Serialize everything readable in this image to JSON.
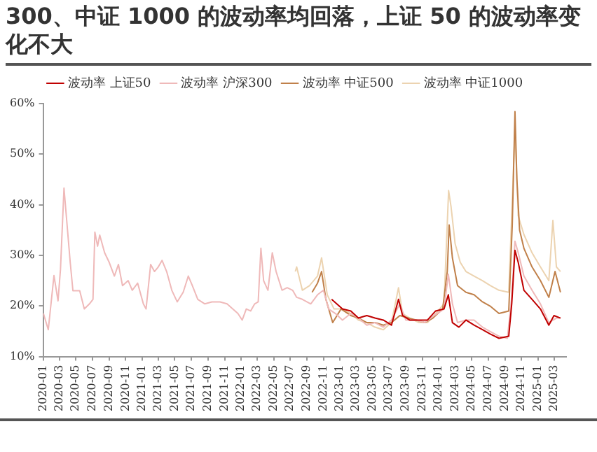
{
  "chart_data": {
    "type": "line",
    "title": "300、中证 1000 的波动率均回落，上证 50 的波动率变化不大",
    "xlim": [
      "2020-01-01",
      "2025-04-15"
    ],
    "xticks": [
      "2020-01",
      "2020-03",
      "2020-05",
      "2020-07",
      "2020-09",
      "2020-11",
      "2021-01",
      "2021-03",
      "2021-05",
      "2021-07",
      "2021-09",
      "2021-11",
      "2022-01",
      "2022-03",
      "2022-05",
      "2022-07",
      "2022-09",
      "2022-11",
      "2023-01",
      "2023-03",
      "2023-05",
      "2023-07",
      "2023-09",
      "2023-11",
      "2024-01",
      "2024-03",
      "2024-05",
      "2024-07",
      "2024-09",
      "2024-11",
      "2025-01",
      "2025-03"
    ],
    "ylim": [
      10,
      60
    ],
    "yticks": [
      {
        "value": 10,
        "label": "10%"
      },
      {
        "value": 20,
        "label": "20%"
      },
      {
        "value": 30,
        "label": "30%"
      },
      {
        "value": 40,
        "label": "40%"
      },
      {
        "value": 50,
        "label": "50%"
      },
      {
        "value": 60,
        "label": "60%"
      }
    ],
    "grid": false,
    "legend": "top",
    "marker": "none",
    "line_style": "solid",
    "series": [
      {
        "name": "波动率 上证50",
        "color": "#c00000",
        "x": [
          "2022-12-01",
          "2022-12-20",
          "2023-01-10",
          "2023-02-10",
          "2023-03-10",
          "2023-04-10",
          "2023-05-10",
          "2023-06-10",
          "2023-07-10",
          "2023-08-05",
          "2023-08-20",
          "2023-09-15",
          "2023-10-20",
          "2023-11-20",
          "2023-12-20",
          "2024-01-20",
          "2024-02-05",
          "2024-02-20",
          "2024-03-15",
          "2024-04-10",
          "2024-05-10",
          "2024-06-10",
          "2024-07-10",
          "2024-08-10",
          "2024-09-15",
          "2024-09-26",
          "2024-10-08",
          "2024-10-20",
          "2024-11-10",
          "2024-12-10",
          "2025-01-10",
          "2025-02-10",
          "2025-03-01",
          "2025-03-25"
        ],
        "values": [
          21.3,
          20.4,
          19.4,
          19,
          17.6,
          18.1,
          17.6,
          17.2,
          16.2,
          21.3,
          18.1,
          17.2,
          17.2,
          17.2,
          19,
          19.4,
          22.2,
          16.7,
          15.8,
          17.2,
          16.2,
          15.3,
          14.4,
          13.6,
          14,
          20.4,
          31,
          28.6,
          23.1,
          21.3,
          19.4,
          16.2,
          18.1,
          17.6
        ]
      },
      {
        "name": "波动率 沪深300",
        "color": "#efb9b9",
        "x": [
          "2020-01-02",
          "2020-01-20",
          "2020-02-10",
          "2020-02-25",
          "2020-03-05",
          "2020-03-18",
          "2020-03-28",
          "2020-04-10",
          "2020-04-20",
          "2020-05-15",
          "2020-06-01",
          "2020-06-20",
          "2020-07-03",
          "2020-07-10",
          "2020-07-20",
          "2020-07-28",
          "2020-08-15",
          "2020-09-01",
          "2020-09-20",
          "2020-10-05",
          "2020-10-20",
          "2020-11-10",
          "2020-11-25",
          "2020-12-15",
          "2021-01-05",
          "2021-01-15",
          "2021-02-01",
          "2021-02-15",
          "2021-03-01",
          "2021-03-15",
          "2021-04-01",
          "2021-04-20",
          "2021-05-10",
          "2021-06-01",
          "2021-06-20",
          "2021-07-05",
          "2021-07-25",
          "2021-08-20",
          "2021-09-15",
          "2021-10-15",
          "2021-11-10",
          "2021-12-01",
          "2021-12-20",
          "2022-01-05",
          "2022-01-20",
          "2022-02-05",
          "2022-02-20",
          "2022-03-05",
          "2022-03-15",
          "2022-03-25",
          "2022-04-10",
          "2022-04-26",
          "2022-05-10",
          "2022-06-01",
          "2022-06-20",
          "2022-07-10",
          "2022-07-25",
          "2022-08-15",
          "2022-09-15",
          "2022-10-10",
          "2022-11-01",
          "2022-11-20",
          "2022-12-15",
          "2023-01-10",
          "2023-02-10",
          "2023-03-10",
          "2023-04-10",
          "2023-05-10",
          "2023-06-10",
          "2023-07-10",
          "2023-08-10",
          "2023-09-01",
          "2023-10-10",
          "2023-11-10",
          "2023-12-15",
          "2024-01-20",
          "2024-02-05",
          "2024-02-20",
          "2024-03-10",
          "2024-04-10",
          "2024-05-10",
          "2024-06-10",
          "2024-07-10",
          "2024-08-10",
          "2024-09-10",
          "2024-09-26",
          "2024-10-08",
          "2024-10-20",
          "2024-11-10",
          "2024-12-10",
          "2025-01-10",
          "2025-02-10",
          "2025-03-10",
          "2025-03-25"
        ],
        "values": [
          18.5,
          15.3,
          26,
          21,
          27.2,
          43.3,
          36.9,
          28.6,
          23,
          23,
          19.4,
          20.4,
          21.3,
          34.6,
          31.8,
          34,
          30.5,
          28.6,
          25.9,
          28.2,
          24,
          25,
          23.1,
          24.5,
          20.4,
          19.4,
          28.2,
          26.8,
          27.7,
          29,
          26.8,
          23.1,
          20.8,
          22.7,
          25.9,
          24,
          21.3,
          20.4,
          20.8,
          20.8,
          20.4,
          19.4,
          18.5,
          17.2,
          19.4,
          19,
          20.4,
          20.8,
          31.4,
          25,
          23.1,
          30.5,
          26.8,
          23.1,
          23.6,
          23.1,
          21.7,
          21.3,
          20.4,
          22.2,
          23.1,
          19.4,
          18.5,
          17.2,
          18.5,
          17.6,
          16.2,
          16.7,
          15.8,
          17.2,
          20.4,
          17.2,
          17.2,
          16.7,
          18.1,
          19.4,
          26.3,
          20.4,
          16.7,
          17.2,
          17.2,
          15.8,
          14.9,
          14,
          13.6,
          21.7,
          32.8,
          30.5,
          25.9,
          23.1,
          20.4,
          16.7,
          17.6,
          17.6
        ]
      },
      {
        "name": "波动率 中证500",
        "color": "#c0804a",
        "x": [
          "2022-09-20",
          "2022-10-10",
          "2022-10-25",
          "2022-11-10",
          "2022-12-05",
          "2023-01-05",
          "2023-02-10",
          "2023-03-10",
          "2023-04-10",
          "2023-05-10",
          "2023-06-10",
          "2023-07-10",
          "2023-08-10",
          "2023-09-10",
          "2023-10-10",
          "2023-11-10",
          "2023-12-10",
          "2024-01-15",
          "2024-02-01",
          "2024-02-08",
          "2024-02-20",
          "2024-03-10",
          "2024-04-10",
          "2024-05-10",
          "2024-06-10",
          "2024-07-10",
          "2024-08-10",
          "2024-09-15",
          "2024-09-28",
          "2024-10-08",
          "2024-10-15",
          "2024-10-25",
          "2024-11-10",
          "2024-12-10",
          "2025-01-10",
          "2025-02-10",
          "2025-03-05",
          "2025-03-25"
        ],
        "values": [
          22.7,
          24.5,
          26.8,
          21.3,
          16.7,
          19.4,
          18.1,
          17.6,
          16.7,
          16.7,
          16.2,
          16.7,
          18.1,
          17.6,
          17.2,
          16.7,
          17.6,
          19.4,
          26.8,
          36,
          29.5,
          24,
          22.7,
          22.2,
          20.8,
          19.9,
          18.5,
          19,
          36,
          58.4,
          45.1,
          35,
          31.4,
          27.7,
          25,
          21.7,
          26.8,
          22.7
        ]
      },
      {
        "name": "波动率 中证1000",
        "color": "#ecd3b0",
        "x": [
          "2022-07-20",
          "2022-07-25",
          "2022-08-15",
          "2022-09-10",
          "2022-10-10",
          "2022-10-25",
          "2022-11-15",
          "2022-12-10",
          "2023-01-10",
          "2023-02-10",
          "2023-03-10",
          "2023-04-10",
          "2023-05-10",
          "2023-06-10",
          "2023-07-10",
          "2023-08-05",
          "2023-08-20",
          "2023-09-15",
          "2023-10-20",
          "2023-11-20",
          "2023-12-20",
          "2024-01-20",
          "2024-02-06",
          "2024-02-15",
          "2024-03-01",
          "2024-03-20",
          "2024-04-10",
          "2024-05-10",
          "2024-06-10",
          "2024-07-10",
          "2024-08-10",
          "2024-09-15",
          "2024-09-28",
          "2024-10-08",
          "2024-10-20",
          "2024-11-10",
          "2024-12-10",
          "2025-01-10",
          "2025-02-10",
          "2025-02-25",
          "2025-03-10",
          "2025-03-25"
        ],
        "values": [
          26.8,
          27.7,
          23.1,
          24,
          25.9,
          29.5,
          22.2,
          19.4,
          19.4,
          18.5,
          17.2,
          16.7,
          15.8,
          15.3,
          16.7,
          23.6,
          18.5,
          17.6,
          16.7,
          16.7,
          18.5,
          20.4,
          42.8,
          39.6,
          32.3,
          28.6,
          26.8,
          25.9,
          25,
          24,
          23.1,
          22.7,
          40.5,
          55.2,
          37.8,
          34.1,
          30.5,
          27.7,
          25,
          36.9,
          27.7,
          26.8
        ]
      }
    ]
  }
}
